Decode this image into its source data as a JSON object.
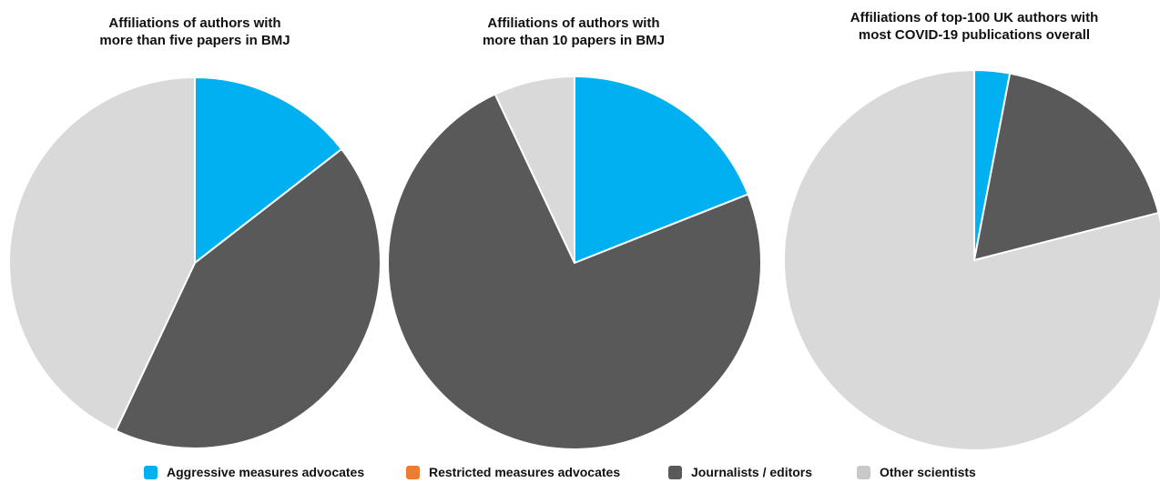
{
  "colors": {
    "aggressive": "#00B0F0",
    "restricted": "#ED7D31",
    "journalists": "#595959",
    "other": "#D9D9D9"
  },
  "legend": [
    {
      "label": "Aggressive measures advocates",
      "color": "#00B0F0"
    },
    {
      "label": "Restricted measures advocates",
      "color": "#ED7D31"
    },
    {
      "label": "Journalists / editors",
      "color": "#595959"
    },
    {
      "label": "Other scientists",
      "color": "#C9C9C9"
    }
  ],
  "chart_data": [
    {
      "type": "pie",
      "title": "Affiliations of authors with\nmore than five papers in BMJ",
      "categories": [
        "Aggressive measures advocates",
        "Restricted measures advocates",
        "Journalists / editors",
        "Other scientists"
      ],
      "values": [
        14.5,
        0,
        42.5,
        43
      ]
    },
    {
      "type": "pie",
      "title": "Affiliations of authors with\nmore than 10 papers in BMJ",
      "categories": [
        "Aggressive measures advocates",
        "Restricted measures advocates",
        "Journalists / editors",
        "Other scientists"
      ],
      "values": [
        19,
        0,
        74,
        7
      ]
    },
    {
      "type": "pie",
      "title": "Affiliations of top-100 UK authors with\nmost COVID-19 publications overall",
      "categories": [
        "Aggressive measures advocates",
        "Restricted measures advocates",
        "Journalists / editors",
        "Other scientists"
      ],
      "values": [
        3,
        0,
        18,
        79
      ]
    }
  ]
}
